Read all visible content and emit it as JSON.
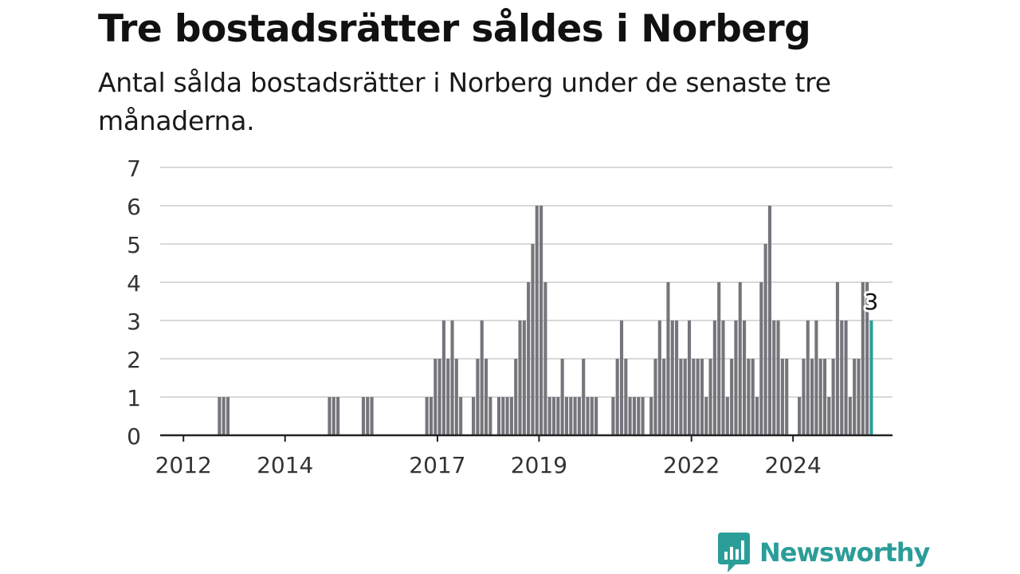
{
  "header": {
    "title": "Tre bostadsrätter såldes i Norberg",
    "subtitle": "Antal sålda bostadsrätter i Norberg under de senaste tre månaderna."
  },
  "colors": {
    "bar": "#75757c",
    "highlight": "#2b9d99",
    "grid": "#d9d9d9",
    "axis": "#222222",
    "brand": "#2b9d99"
  },
  "brand": {
    "name": "Newsworthy",
    "icon": "newsworthy-logo-icon"
  },
  "chart_data": {
    "type": "bar",
    "title": "Tre bostadsrätter såldes i Norberg",
    "subtitle": "Antal sålda bostadsrätter i Norberg under de senaste tre månaderna.",
    "xlabel": "",
    "ylabel": "",
    "ylim": [
      0,
      7
    ],
    "yticks": [
      0,
      1,
      2,
      3,
      4,
      5,
      6,
      7
    ],
    "xticks": [
      "2012",
      "2014",
      "2017",
      "2019",
      "2022",
      "2024"
    ],
    "xlim": [
      "2011-07",
      "2025-12"
    ],
    "grid": true,
    "legend": "none",
    "series": [
      {
        "values": [
          [
            "2012-09",
            1
          ],
          [
            "2012-10",
            1
          ],
          [
            "2012-11",
            1
          ],
          [
            "2014-11",
            1
          ],
          [
            "2014-12",
            1
          ],
          [
            "2015-01",
            1
          ],
          [
            "2015-07",
            1
          ],
          [
            "2015-08",
            1
          ],
          [
            "2015-09",
            1
          ],
          [
            "2016-10",
            1
          ],
          [
            "2016-11",
            1
          ],
          [
            "2016-12",
            2
          ],
          [
            "2017-01",
            2
          ],
          [
            "2017-02",
            3
          ],
          [
            "2017-03",
            2
          ],
          [
            "2017-04",
            3
          ],
          [
            "2017-05",
            2
          ],
          [
            "2017-06",
            1
          ],
          [
            "2017-09",
            1
          ],
          [
            "2017-10",
            2
          ],
          [
            "2017-11",
            3
          ],
          [
            "2017-12",
            2
          ],
          [
            "2018-01",
            1
          ],
          [
            "2018-03",
            1
          ],
          [
            "2018-04",
            1
          ],
          [
            "2018-05",
            1
          ],
          [
            "2018-06",
            1
          ],
          [
            "2018-07",
            2
          ],
          [
            "2018-08",
            3
          ],
          [
            "2018-09",
            3
          ],
          [
            "2018-10",
            4
          ],
          [
            "2018-11",
            5
          ],
          [
            "2018-12",
            6
          ],
          [
            "2019-01",
            6
          ],
          [
            "2019-02",
            4
          ],
          [
            "2019-03",
            1
          ],
          [
            "2019-04",
            1
          ],
          [
            "2019-05",
            1
          ],
          [
            "2019-06",
            2
          ],
          [
            "2019-07",
            1
          ],
          [
            "2019-08",
            1
          ],
          [
            "2019-09",
            1
          ],
          [
            "2019-10",
            1
          ],
          [
            "2019-11",
            2
          ],
          [
            "2019-12",
            1
          ],
          [
            "2020-01",
            1
          ],
          [
            "2020-02",
            1
          ],
          [
            "2020-06",
            1
          ],
          [
            "2020-07",
            2
          ],
          [
            "2020-08",
            3
          ],
          [
            "2020-09",
            2
          ],
          [
            "2020-10",
            1
          ],
          [
            "2020-11",
            1
          ],
          [
            "2020-12",
            1
          ],
          [
            "2021-01",
            1
          ],
          [
            "2021-03",
            1
          ],
          [
            "2021-04",
            2
          ],
          [
            "2021-05",
            3
          ],
          [
            "2021-06",
            2
          ],
          [
            "2021-07",
            4
          ],
          [
            "2021-08",
            3
          ],
          [
            "2021-09",
            3
          ],
          [
            "2021-10",
            2
          ],
          [
            "2021-11",
            2
          ],
          [
            "2021-12",
            3
          ],
          [
            "2022-01",
            2
          ],
          [
            "2022-02",
            2
          ],
          [
            "2022-03",
            2
          ],
          [
            "2022-04",
            1
          ],
          [
            "2022-05",
            2
          ],
          [
            "2022-06",
            3
          ],
          [
            "2022-07",
            4
          ],
          [
            "2022-08",
            3
          ],
          [
            "2022-09",
            1
          ],
          [
            "2022-10",
            2
          ],
          [
            "2022-11",
            3
          ],
          [
            "2022-12",
            4
          ],
          [
            "2023-01",
            3
          ],
          [
            "2023-02",
            2
          ],
          [
            "2023-03",
            2
          ],
          [
            "2023-04",
            1
          ],
          [
            "2023-05",
            4
          ],
          [
            "2023-06",
            5
          ],
          [
            "2023-07",
            6
          ],
          [
            "2023-08",
            3
          ],
          [
            "2023-09",
            3
          ],
          [
            "2023-10",
            2
          ],
          [
            "2023-11",
            2
          ],
          [
            "2024-02",
            1
          ],
          [
            "2024-03",
            2
          ],
          [
            "2024-04",
            3
          ],
          [
            "2024-05",
            2
          ],
          [
            "2024-06",
            3
          ],
          [
            "2024-07",
            2
          ],
          [
            "2024-08",
            2
          ],
          [
            "2024-09",
            1
          ],
          [
            "2024-10",
            2
          ],
          [
            "2024-11",
            4
          ],
          [
            "2024-12",
            3
          ],
          [
            "2025-01",
            3
          ],
          [
            "2025-02",
            1
          ],
          [
            "2025-03",
            2
          ],
          [
            "2025-04",
            2
          ],
          [
            "2025-05",
            4
          ],
          [
            "2025-06",
            4
          ],
          [
            "2025-07",
            3
          ]
        ]
      }
    ],
    "annotations": [
      {
        "x": "2025-07",
        "y": 3,
        "text": "3"
      }
    ]
  }
}
